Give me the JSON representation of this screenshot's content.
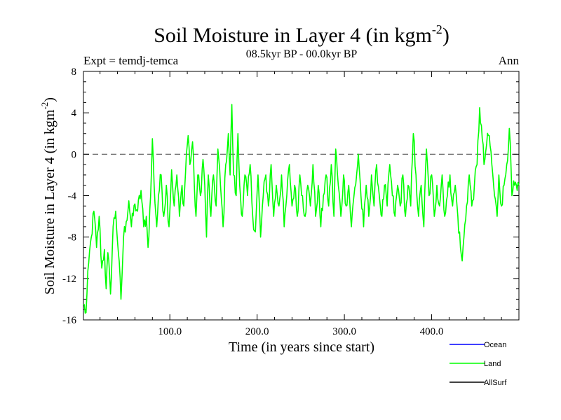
{
  "chart_data": {
    "type": "line",
    "title": "Soil Moisture in Layer 4 (in kgm",
    "title_sup": "-2",
    "title_close": ")",
    "subtitle_left": "Expt = temdj-temca",
    "subtitle_center": "08.5kyr BP - 00.0kyr BP",
    "subtitle_right": "Ann",
    "xlabel": "Time (in years since start)",
    "ylabel": "Soil Moisture in Layer 4 (in kgm",
    "ylabel_sup": "-2",
    "ylabel_close": ")",
    "xlim": [
      1,
      500
    ],
    "ylim": [
      -16,
      8
    ],
    "xticks": [
      {
        "v": 100,
        "label": "100.0"
      },
      {
        "v": 200,
        "label": "200.0"
      },
      {
        "v": 300,
        "label": "300.0"
      },
      {
        "v": 400,
        "label": "400.0"
      }
    ],
    "yticks": [
      {
        "v": 8,
        "label": "8"
      },
      {
        "v": 4,
        "label": "4"
      },
      {
        "v": 0,
        "label": "0"
      },
      {
        "v": -4,
        "label": "-4"
      },
      {
        "v": -8,
        "label": "-8"
      },
      {
        "v": -12,
        "label": "-12"
      },
      {
        "v": -16,
        "label": "-16"
      }
    ],
    "reference_line": 0,
    "legend": [
      {
        "name": "Ocean",
        "color": "#0000ff"
      },
      {
        "name": "Land",
        "color": "#00ff00"
      },
      {
        "name": "AllSurf",
        "color": "#000000"
      }
    ],
    "series": [
      {
        "name": "Land",
        "color": "#00ff00",
        "anchors": [
          [
            1,
            -14.5
          ],
          [
            4,
            -15.3
          ],
          [
            7,
            -10.5
          ],
          [
            10,
            -8
          ],
          [
            13,
            -5.5
          ],
          [
            16,
            -9
          ],
          [
            19,
            -6
          ],
          [
            22,
            -11
          ],
          [
            25,
            -9.2
          ],
          [
            27,
            -13
          ],
          [
            29,
            -9.5
          ],
          [
            32,
            -13.5
          ],
          [
            35,
            -7
          ],
          [
            38,
            -5.5
          ],
          [
            41,
            -9.5
          ],
          [
            44,
            -14
          ],
          [
            47,
            -8
          ],
          [
            50,
            -6.5
          ],
          [
            53,
            -4.5
          ],
          [
            56,
            -7
          ],
          [
            60,
            -4.8
          ],
          [
            63,
            -5.5
          ],
          [
            67,
            -3.5
          ],
          [
            70,
            -7
          ],
          [
            73,
            -6
          ],
          [
            75,
            -9
          ],
          [
            78,
            -4
          ],
          [
            80,
            1.5
          ],
          [
            82,
            -3
          ],
          [
            85,
            -7
          ],
          [
            87,
            -4
          ],
          [
            90,
            -2
          ],
          [
            93,
            -6
          ],
          [
            96,
            -3
          ],
          [
            99,
            -7
          ],
          [
            102,
            -1.5
          ],
          [
            105,
            -5
          ],
          [
            108,
            -2
          ],
          [
            111,
            -6
          ],
          [
            114,
            -3
          ],
          [
            116,
            -5
          ],
          [
            119,
            0
          ],
          [
            121,
            1.8
          ],
          [
            123,
            -1
          ],
          [
            126,
            1.2
          ],
          [
            128,
            -3
          ],
          [
            130,
            -6
          ],
          [
            132,
            -2
          ],
          [
            135,
            -4
          ],
          [
            138,
            -0.5
          ],
          [
            140,
            -3
          ],
          [
            142,
            -8
          ],
          [
            144,
            -2
          ],
          [
            147,
            -6
          ],
          [
            150,
            -2
          ],
          [
            153,
            -5
          ],
          [
            155,
            0.5
          ],
          [
            158,
            -3
          ],
          [
            161,
            -7
          ],
          [
            164,
            -1
          ],
          [
            167,
            2
          ],
          [
            169,
            -2
          ],
          [
            171,
            4.8
          ],
          [
            173,
            -2
          ],
          [
            176,
            -4
          ],
          [
            178,
            2
          ],
          [
            180,
            -3
          ],
          [
            183,
            -6
          ],
          [
            186,
            -2
          ],
          [
            189,
            -4
          ],
          [
            192,
            -1
          ],
          [
            195,
            -6
          ],
          [
            198,
            -7.5
          ],
          [
            201,
            -2
          ],
          [
            204,
            -8
          ],
          [
            207,
            -4
          ],
          [
            210,
            -2
          ],
          [
            213,
            -5
          ],
          [
            216,
            -1
          ],
          [
            219,
            -6
          ],
          [
            222,
            -3
          ],
          [
            225,
            -5
          ],
          [
            228,
            -2
          ],
          [
            231,
            -7
          ],
          [
            234,
            -4
          ],
          [
            237,
            -1
          ],
          [
            240,
            -5
          ],
          [
            243,
            -3
          ],
          [
            246,
            -6
          ],
          [
            249,
            -2
          ],
          [
            252,
            -4
          ],
          [
            255,
            -6
          ],
          [
            258,
            -3
          ],
          [
            261,
            -5
          ],
          [
            264,
            -1
          ],
          [
            267,
            -6
          ],
          [
            270,
            -3
          ],
          [
            273,
            -7
          ],
          [
            276,
            -4
          ],
          [
            279,
            -2
          ],
          [
            282,
            -5
          ],
          [
            285,
            -1
          ],
          [
            288,
            -6
          ],
          [
            290,
            0.5
          ],
          [
            293,
            -3
          ],
          [
            296,
            -6
          ],
          [
            299,
            -2
          ],
          [
            302,
            -5
          ],
          [
            305,
            -3
          ],
          [
            308,
            -7
          ],
          [
            311,
            -4
          ],
          [
            314,
            -2
          ],
          [
            316,
            0
          ],
          [
            319,
            -4
          ],
          [
            322,
            -7
          ],
          [
            325,
            -3
          ],
          [
            328,
            -6
          ],
          [
            331,
            -2
          ],
          [
            334,
            -5
          ],
          [
            337,
            -1
          ],
          [
            340,
            -4
          ],
          [
            343,
            -6
          ],
          [
            346,
            -3
          ],
          [
            349,
            -5
          ],
          [
            352,
            -1
          ],
          [
            355,
            -4
          ],
          [
            358,
            -6
          ],
          [
            361,
            -3
          ],
          [
            364,
            -5
          ],
          [
            367,
            -2
          ],
          [
            370,
            -6
          ],
          [
            373,
            -3
          ],
          [
            376,
            -5
          ],
          [
            379,
            2
          ],
          [
            382,
            -2
          ],
          [
            385,
            -6
          ],
          [
            388,
            -3
          ],
          [
            391,
            -7
          ],
          [
            394,
            0.5
          ],
          [
            397,
            -4
          ],
          [
            400,
            -2
          ],
          [
            403,
            -6
          ],
          [
            406,
            -3
          ],
          [
            409,
            -5
          ],
          [
            412,
            -2
          ],
          [
            415,
            -6
          ],
          [
            418,
            -4
          ],
          [
            421,
            -2
          ],
          [
            424,
            -5
          ],
          [
            427,
            -3
          ],
          [
            430,
            -6
          ],
          [
            433,
            -9
          ],
          [
            435,
            -10.3
          ],
          [
            437,
            -8
          ],
          [
            440,
            -5
          ],
          [
            443,
            -2
          ],
          [
            446,
            -5
          ],
          [
            449,
            -3
          ],
          [
            452,
            -1
          ],
          [
            455,
            4.5
          ],
          [
            458,
            1.5
          ],
          [
            460,
            -1
          ],
          [
            463,
            1
          ],
          [
            466,
            1.8
          ],
          [
            469,
            -1
          ],
          [
            472,
            -4
          ],
          [
            475,
            -6
          ],
          [
            477,
            -2
          ],
          [
            480,
            -5
          ],
          [
            483,
            -3
          ],
          [
            486,
            -1
          ],
          [
            489,
            2.5
          ],
          [
            492,
            -4
          ],
          [
            495,
            -3
          ],
          [
            498,
            -3.5
          ],
          [
            500,
            -3
          ]
        ]
      }
    ]
  }
}
